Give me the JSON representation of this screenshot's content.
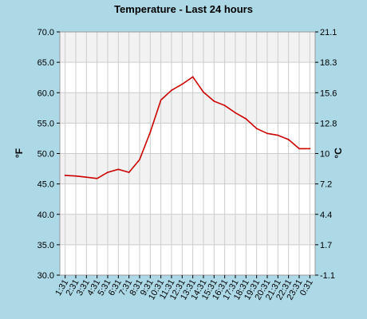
{
  "chart_data": {
    "type": "line",
    "title": "Temperature - Last 24 hours",
    "ylabel": "°F",
    "y2label": "°C",
    "ylim": [
      30.0,
      70.0
    ],
    "y_ticks": [
      "70.0",
      "65.0",
      "60.0",
      "55.0",
      "50.0",
      "45.0",
      "40.0",
      "35.0",
      "30.0"
    ],
    "y2_ticks": [
      "21.1",
      "18.3",
      "15.6",
      "12.8",
      "10",
      "7.2",
      "4.4",
      "1.7",
      "-1.1"
    ],
    "x_ticks": [
      "1:31",
      "2:31",
      "3:31",
      "4:31",
      "5:31",
      "6:31",
      "7:31",
      "8:31",
      "9:31",
      "10:31",
      "11:31",
      "12:31",
      "13:31",
      "14:31",
      "15:31",
      "16:31",
      "17:31",
      "18:31",
      "19:31",
      "20:31",
      "21:31",
      "22:31",
      "23:31",
      "0:31"
    ],
    "grid": true,
    "colors": {
      "background": "#add8e6",
      "plot_band_light": "#ffffff",
      "plot_band_dark": "#f2f2f2",
      "grid": "#cccccc",
      "line": "#cc0000"
    },
    "series": [
      {
        "values": [
          46.4,
          46.3,
          46.1,
          45.9,
          46.9,
          47.4,
          46.9,
          49.0,
          53.5,
          58.8,
          60.4,
          61.4,
          62.6,
          60.1,
          58.6,
          57.9,
          56.7,
          55.7,
          54.1,
          53.3,
          53.0,
          52.3,
          50.8,
          50.8
        ]
      }
    ]
  }
}
